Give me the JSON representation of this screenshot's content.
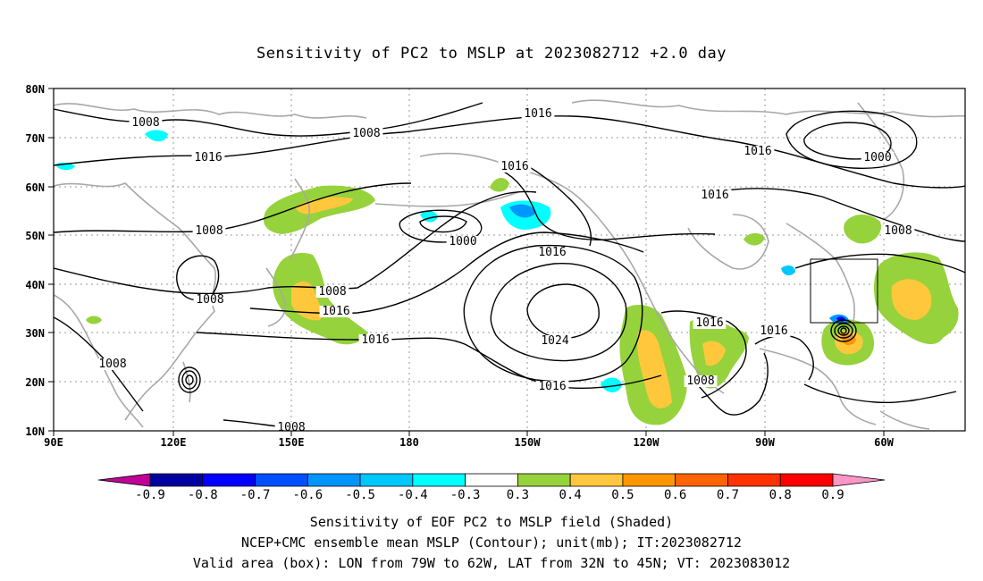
{
  "title": "Sensitivity of PC2 to MSLP at 2023082712 +2.0 day",
  "map": {
    "lon_labels": [
      "90E",
      "120E",
      "150E",
      "180",
      "150W",
      "120W",
      "90W",
      "60W"
    ],
    "lat_labels": [
      "80N",
      "70N",
      "60N",
      "50N",
      "40N",
      "30N",
      "20N",
      "10N"
    ],
    "contour_labels": [
      "1008",
      "1008",
      "1016",
      "1016",
      "1008",
      "1000",
      "1016",
      "1008",
      "1016",
      "1016",
      "1016",
      "1024",
      "1016",
      "1016",
      "1008",
      "1008",
      "1008",
      "1008",
      "1016",
      "1016",
      "1008",
      "1000",
      "1016"
    ],
    "valid_box": "LON from 79W to 62W, LAT from 32N to 45N"
  },
  "colorbar": {
    "colors": [
      "#c00096",
      "#0000a0",
      "#0000ff",
      "#0050ff",
      "#0096ff",
      "#00c8ff",
      "#00ffff",
      "#ffffff",
      "#96d23c",
      "#ffc83c",
      "#ff9600",
      "#ff6400",
      "#ff3200",
      "#ff0000",
      "#ff96c8"
    ],
    "tick_labels": [
      "-0.9",
      "-0.8",
      "-0.7",
      "-0.6",
      "-0.5",
      "-0.4",
      "-0.3",
      "0.3",
      "0.4",
      "0.5",
      "0.6",
      "0.7",
      "0.8",
      "0.9"
    ]
  },
  "captions": {
    "line1": "Sensitivity of EOF PC2 to MSLP field (Shaded)",
    "line2": "NCEP+CMC ensemble mean MSLP (Contour); unit(mb); IT:2023082712",
    "line3": "Valid area (box): LON from 79W to 62W, LAT from 32N to 45N; VT: 2023083012"
  }
}
